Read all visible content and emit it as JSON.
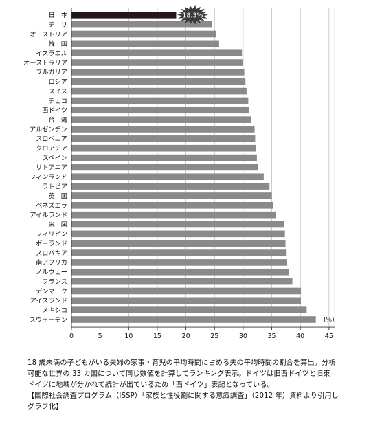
{
  "chart_data": {
    "type": "bar",
    "orientation": "horizontal",
    "categories": [
      "日　本",
      "チ　リ",
      "オーストリア",
      "韓　国",
      "イスラエル",
      "オーストラリア",
      "ブルガリア",
      "ロシア",
      "スイス",
      "チェコ",
      "西ドイツ",
      "台　湾",
      "アルゼンチン",
      "スロベニア",
      "クロアチア",
      "スペイン",
      "リトアニア",
      "フィンランド",
      "ラトビア",
      "英　国",
      "ベネズエラ",
      "アイルランド",
      "米　国",
      "フィリピン",
      "ポーランド",
      "スロバキア",
      "南アフリカ",
      "ノルウェー",
      "フランス",
      "デンマーク",
      "アイスランド",
      "メキシコ",
      "スウェーデン"
    ],
    "values": [
      18.3,
      24.6,
      25.3,
      25.8,
      29.8,
      29.9,
      30.2,
      30.4,
      30.6,
      30.9,
      31.0,
      31.4,
      32.0,
      32.1,
      32.2,
      32.4,
      32.6,
      33.6,
      34.6,
      35.0,
      35.3,
      35.7,
      37.1,
      37.3,
      37.4,
      37.6,
      37.7,
      38.0,
      38.6,
      40.1,
      40.1,
      41.1,
      42.7
    ],
    "highlight_index": 0,
    "highlight_label": "18.3%",
    "xlabel": "(%)",
    "xlim": [
      0,
      46
    ],
    "xticks": [
      0,
      5,
      10,
      15,
      20,
      25,
      30,
      35,
      40,
      45
    ],
    "grid": "vertical",
    "colors": {
      "bar": "#8a8a8a",
      "highlight": "#231815",
      "grid": "#b5b5b5",
      "burst": "#3a3a3a"
    }
  },
  "caption": {
    "line1": "18 歳未満の子どもがいる夫婦の家事・育児の平均時間に占める夫の平均時間の割合を算出。分析",
    "line2": "可能な世界の 33 カ国について同じ数値を計算してランキング表示。ドイツは旧西ドイツと旧東",
    "line3": "ドイツに地域が分かれて統計が出ているため「西ドイツ」表記となっている。",
    "line4": "【国際社会調査プログラム（ISSP）「家族と性役割に関する意識調査」（2012 年）資料より引用し",
    "line5": "グラフ化】"
  }
}
